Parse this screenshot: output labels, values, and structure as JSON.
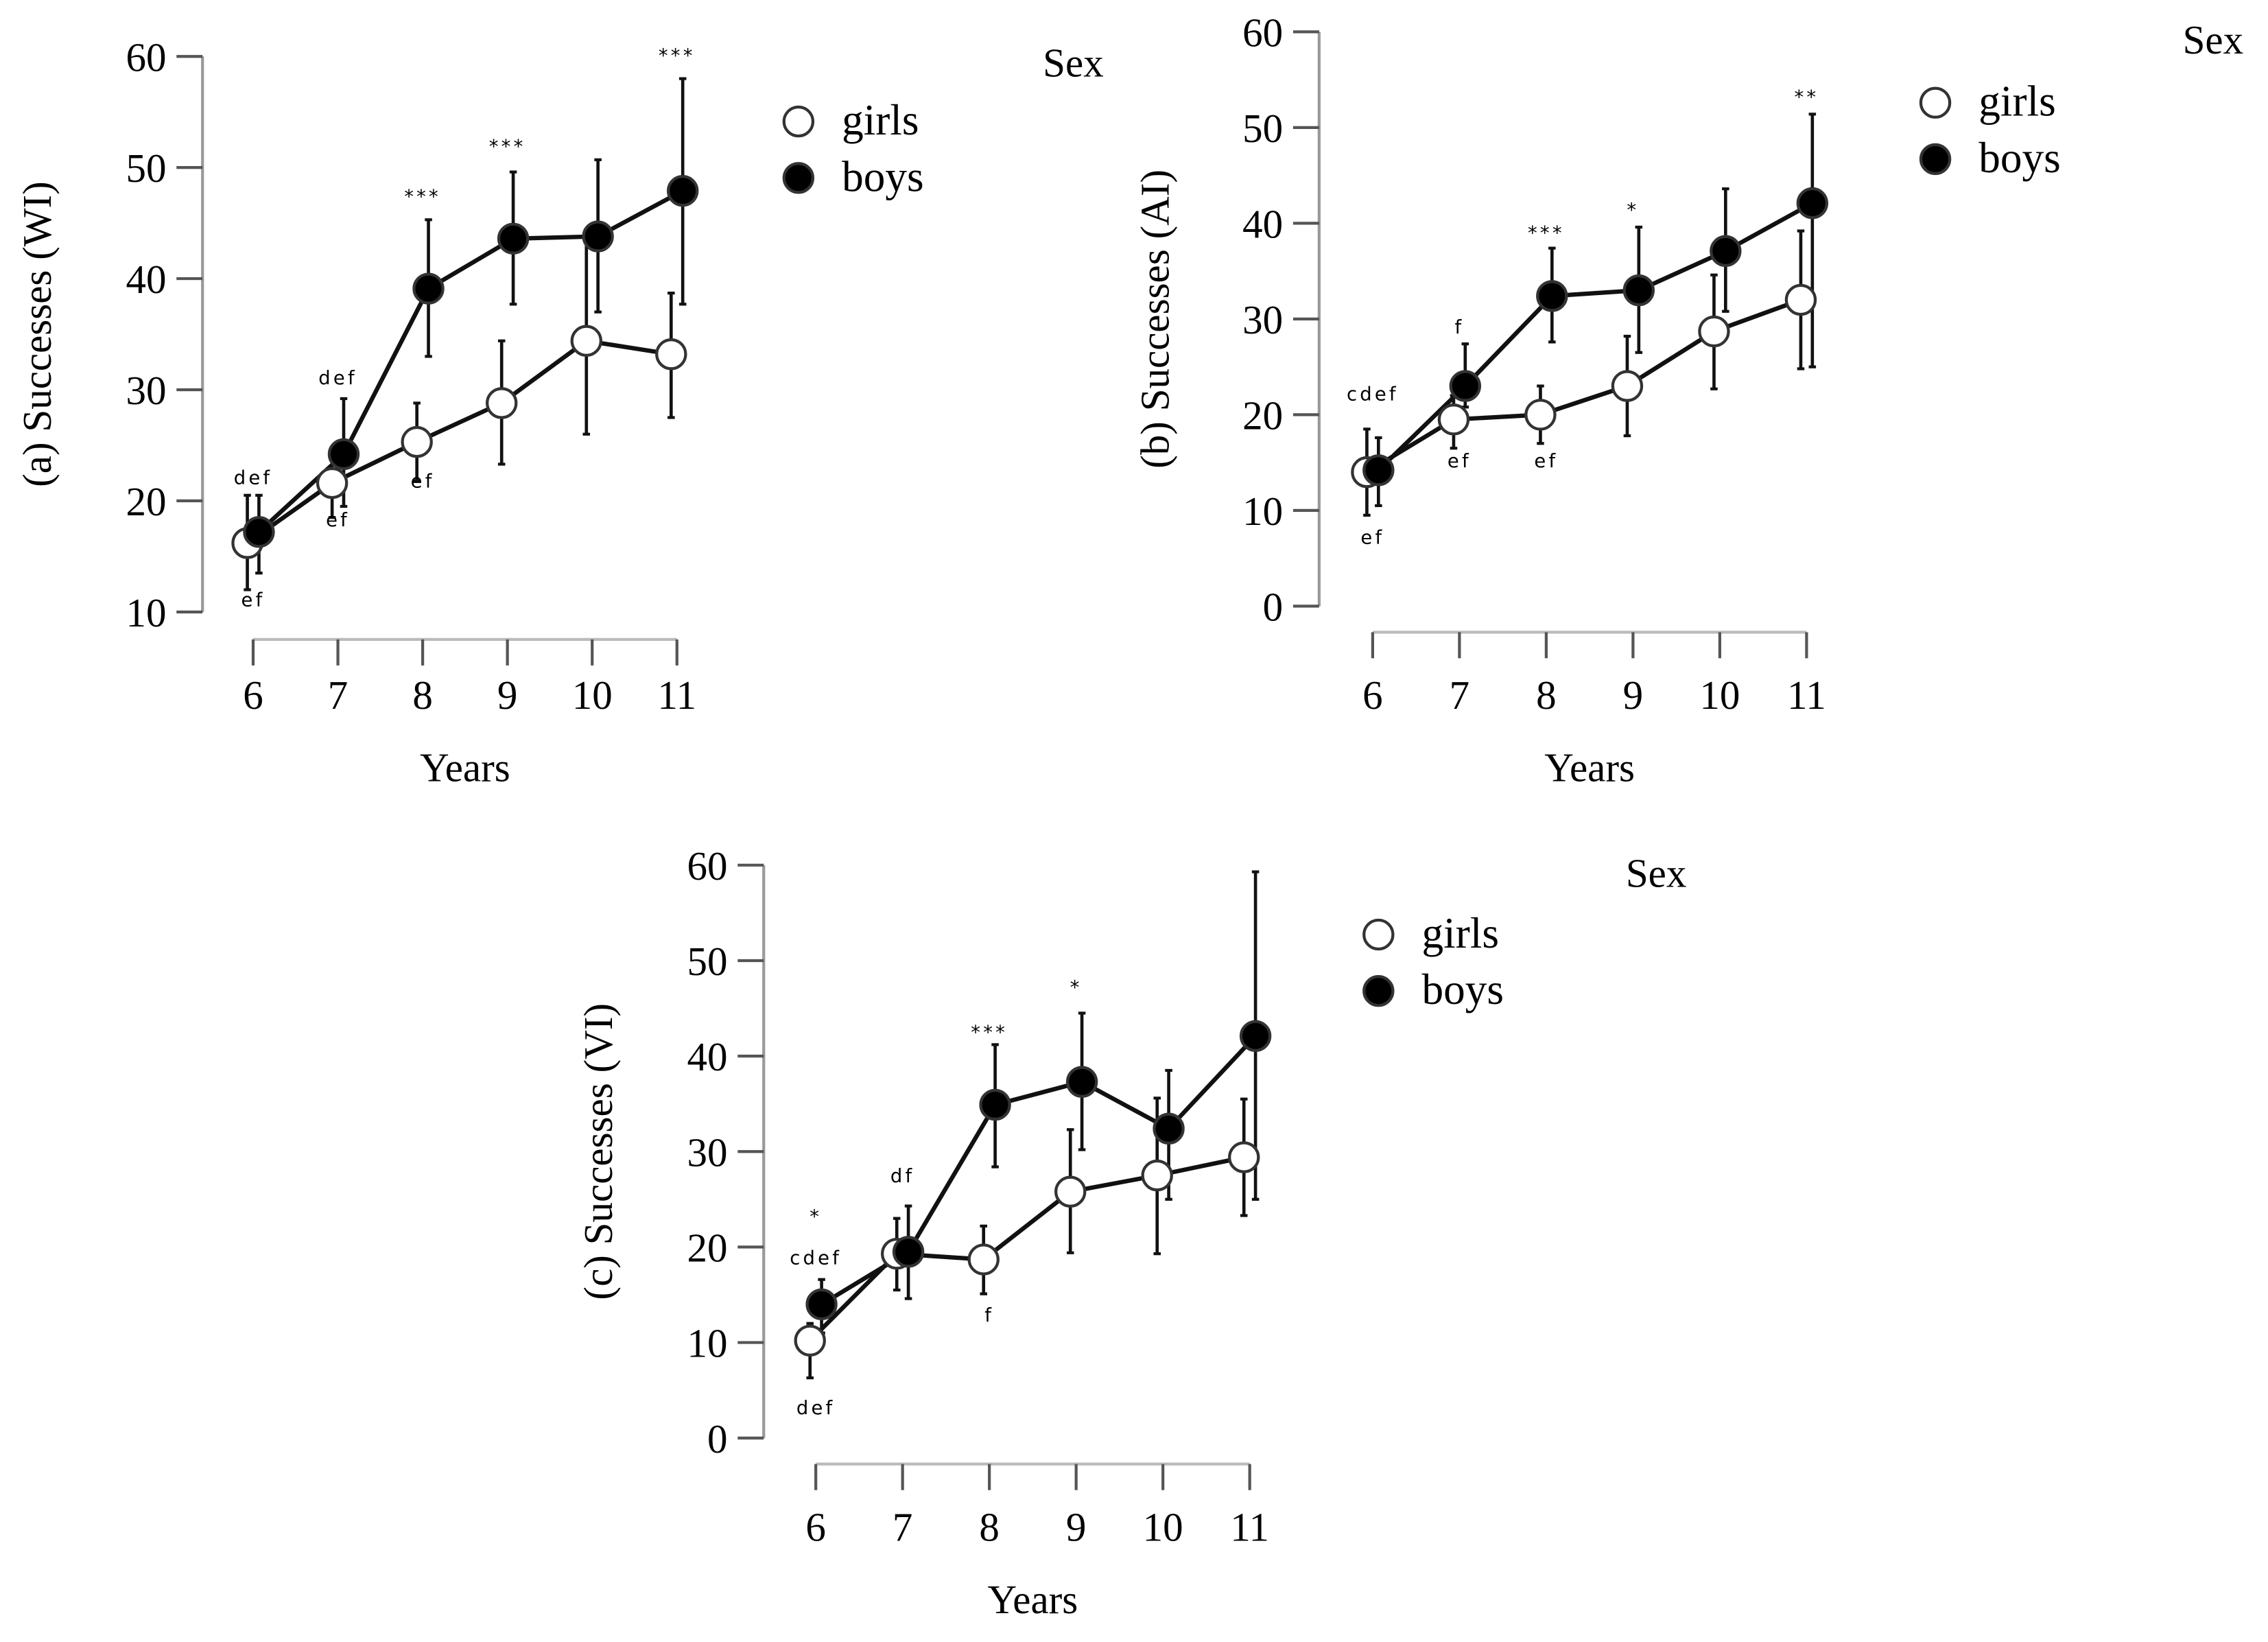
{
  "chart_data": [
    {
      "type": "line",
      "panel": "a",
      "ylabel": "(a) Successes (WI)",
      "xlabel": "Years",
      "ylim": [
        10,
        60
      ],
      "yticks": [
        10,
        20,
        30,
        40,
        50,
        60
      ],
      "x": [
        6,
        7,
        8,
        9,
        10,
        11
      ],
      "legend_title": "Sex",
      "legend_placement": "top-right",
      "series": [
        {
          "name": "girls",
          "marker": "open-circle",
          "values": [
            16.2,
            21.6,
            25.3,
            28.8,
            34.4,
            33.2
          ],
          "err_low": [
            12,
            18.5,
            21.8,
            23.3,
            26,
            27.5
          ],
          "err_high": [
            20.5,
            24.5,
            28.8,
            34.4,
            44,
            38.7
          ]
        },
        {
          "name": "boys",
          "marker": "filled-circle",
          "values": [
            17.2,
            24.2,
            39.1,
            43.6,
            43.8,
            47.9
          ],
          "err_low": [
            13.5,
            19.5,
            33,
            37.7,
            37,
            37.7
          ],
          "err_high": [
            20.5,
            29.2,
            45.3,
            49.6,
            50.7,
            58
          ]
        }
      ],
      "annotations": [
        {
          "x": 6,
          "y": 21.5,
          "text": "def"
        },
        {
          "x": 6,
          "y": 10.5,
          "text": "ef"
        },
        {
          "x": 7,
          "y": 30.5,
          "text": "def"
        },
        {
          "x": 7,
          "y": 17.7,
          "text": "ef"
        },
        {
          "x": 8,
          "y": 21.2,
          "text": "ef"
        },
        {
          "x": 8,
          "y": 46.8,
          "text": "***"
        },
        {
          "x": 9,
          "y": 51.3,
          "text": "***"
        },
        {
          "x": 11,
          "y": 59.5,
          "text": "***"
        }
      ]
    },
    {
      "type": "line",
      "panel": "b",
      "ylabel": "(b) Successes (AI)",
      "xlabel": "Years",
      "ylim": [
        0,
        60
      ],
      "yticks": [
        0,
        10,
        20,
        30,
        40,
        50,
        60
      ],
      "x": [
        6,
        7,
        8,
        9,
        10,
        11
      ],
      "legend_title": "Sex",
      "legend_placement": "top-right",
      "series": [
        {
          "name": "girls",
          "marker": "open-circle",
          "values": [
            14,
            19.5,
            20,
            23,
            28.7,
            32
          ],
          "err_low": [
            9.5,
            16.5,
            17,
            17.8,
            22.7,
            24.8
          ],
          "err_high": [
            18.5,
            22,
            23,
            28.2,
            34.6,
            39.2
          ]
        },
        {
          "name": "boys",
          "marker": "filled-circle",
          "values": [
            14.2,
            23,
            32.4,
            33,
            37.1,
            42.1
          ],
          "err_low": [
            10.5,
            20.8,
            27.6,
            26.5,
            30.8,
            25
          ],
          "err_high": [
            17.6,
            27.4,
            37.4,
            39.6,
            43.6,
            51.4
          ]
        }
      ],
      "annotations": [
        {
          "x": 6,
          "y": 21.5,
          "text": "cdef"
        },
        {
          "x": 6,
          "y": 6.5,
          "text": "ef"
        },
        {
          "x": 7,
          "y": 28.5,
          "text": "f"
        },
        {
          "x": 7,
          "y": 14.5,
          "text": "ef"
        },
        {
          "x": 8,
          "y": 14.5,
          "text": "ef"
        },
        {
          "x": 8,
          "y": 38.3,
          "text": "***"
        },
        {
          "x": 9,
          "y": 40.7,
          "text": "*"
        },
        {
          "x": 11,
          "y": 52.5,
          "text": "**"
        }
      ]
    },
    {
      "type": "line",
      "panel": "c",
      "ylabel": "(c) Successes (VI)",
      "xlabel": "Years",
      "ylim": [
        0,
        60
      ],
      "yticks": [
        0,
        10,
        20,
        30,
        40,
        50,
        60
      ],
      "x": [
        6,
        7,
        8,
        9,
        10,
        11
      ],
      "legend_title": "Sex",
      "legend_placement": "top-right",
      "series": [
        {
          "name": "girls",
          "marker": "open-circle",
          "values": [
            10.2,
            19.3,
            18.7,
            25.8,
            27.5,
            29.4
          ],
          "err_low": [
            6.3,
            15.5,
            15.1,
            19.4,
            19.3,
            23.3
          ],
          "err_high": [
            12,
            23,
            22.2,
            32.3,
            35.6,
            35.5
          ]
        },
        {
          "name": "boys",
          "marker": "filled-circle",
          "values": [
            14,
            19.5,
            34.9,
            37.3,
            32.4,
            42.1
          ],
          "err_low": [
            11,
            14.6,
            28.4,
            30.2,
            25,
            25
          ],
          "err_high": [
            16.6,
            24.3,
            41.2,
            44.5,
            38.5,
            59.3
          ]
        }
      ],
      "annotations": [
        {
          "x": 6,
          "y": 22.5,
          "text": "*"
        },
        {
          "x": 6,
          "y": 18.2,
          "text": "cdef"
        },
        {
          "x": 6,
          "y": 2.5,
          "text": "def"
        },
        {
          "x": 7,
          "y": 26.8,
          "text": "df"
        },
        {
          "x": 8,
          "y": 12.2,
          "text": "f"
        },
        {
          "x": 8,
          "y": 41.8,
          "text": "***"
        },
        {
          "x": 9,
          "y": 46.5,
          "text": "*"
        }
      ]
    }
  ]
}
